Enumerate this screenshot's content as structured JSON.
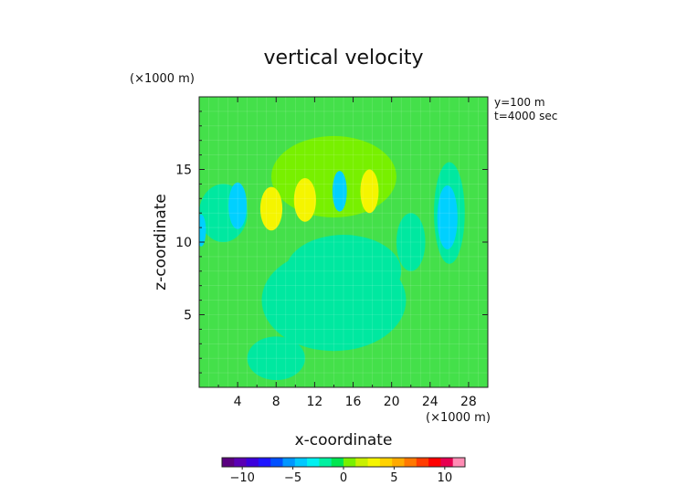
{
  "chart_data": {
    "type": "contour",
    "title": "vertical velocity",
    "xlabel": "x-coordinate",
    "ylabel": "z-coordinate",
    "x_unit": "(×1000 m)",
    "y_unit": "(×1000 m)",
    "xlim": [
      0,
      30
    ],
    "ylim": [
      0,
      20
    ],
    "x_ticks": [
      4,
      8,
      12,
      16,
      20,
      24,
      28
    ],
    "y_ticks": [
      5,
      10,
      15
    ],
    "annotations": [
      "y=100 m",
      "t=4000 sec"
    ],
    "grid": true,
    "colorbar": {
      "min": -12,
      "max": 12,
      "ticks": [
        -10,
        -5,
        0,
        5,
        10
      ],
      "colors": [
        "#5a0080",
        "#5a00b4",
        "#3c00dc",
        "#1e14ff",
        "#0050ff",
        "#0096ff",
        "#00c8ff",
        "#00f0f0",
        "#00f0a0",
        "#00e650",
        "#78f000",
        "#c8f000",
        "#f5f500",
        "#ffd200",
        "#ffaa00",
        "#ff7800",
        "#ff3c00",
        "#ff0000",
        "#e60050",
        "#ff8cb4"
      ]
    },
    "field": {
      "background": {
        "value": 0.5,
        "color": "#44e04a"
      },
      "regions": [
        {
          "value": -0.5,
          "color": "#00e8a0",
          "center": [
            14,
            6
          ],
          "radius": [
            7.5,
            3.5
          ]
        },
        {
          "value": -0.5,
          "color": "#00e8a0",
          "center": [
            8,
            2
          ],
          "radius": [
            3,
            1.5
          ]
        },
        {
          "value": -0.5,
          "color": "#00e8a0",
          "center": [
            22,
            10
          ],
          "radius": [
            1.5,
            2
          ]
        },
        {
          "value": -0.5,
          "color": "#00e8a0",
          "center": [
            26,
            12
          ],
          "radius": [
            1.6,
            3.5
          ]
        },
        {
          "value": -0.5,
          "color": "#00e8a0",
          "center": [
            2.5,
            12
          ],
          "radius": [
            2.5,
            2
          ]
        },
        {
          "value": -0.5,
          "color": "#00e8a0",
          "center": [
            15,
            8
          ],
          "radius": [
            6,
            2.5
          ]
        },
        {
          "value": 1.5,
          "color": "#78f000",
          "center": [
            14,
            14.5
          ],
          "radius": [
            6.5,
            2.8
          ]
        },
        {
          "value": 3.0,
          "color": "#f5f500",
          "center": [
            7.5,
            12.3
          ],
          "radius": [
            1.15,
            1.5
          ]
        },
        {
          "value": 3.0,
          "color": "#f5f500",
          "center": [
            11,
            12.9
          ],
          "radius": [
            1.15,
            1.5
          ]
        },
        {
          "value": 3.0,
          "color": "#f5f500",
          "center": [
            17.7,
            13.5
          ],
          "radius": [
            0.95,
            1.5
          ]
        },
        {
          "value": -2.0,
          "color": "#00d0ff",
          "center": [
            4,
            12.5
          ],
          "radius": [
            0.95,
            1.6
          ]
        },
        {
          "value": -2.0,
          "color": "#00d0ff",
          "center": [
            14.6,
            13.5
          ],
          "radius": [
            0.75,
            1.4
          ]
        },
        {
          "value": -2.0,
          "color": "#00d0ff",
          "center": [
            25.8,
            11.7
          ],
          "radius": [
            1.05,
            2.2
          ]
        },
        {
          "value": -2.0,
          "color": "#00d0ff",
          "center": [
            0.2,
            10.8
          ],
          "radius": [
            0.5,
            1.1
          ]
        }
      ]
    }
  }
}
